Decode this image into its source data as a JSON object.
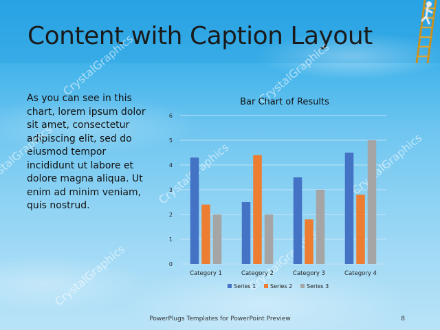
{
  "slide": {
    "title": "Content with Caption Layout",
    "body_text": "As you can see in this chart, lorem ipsum dolor sit amet, consectetur adipiscing elit, sed do eiusmod tempor incididunt ut labore et dolore magna aliqua. Ut enim ad minim veniam, quis nostrud.",
    "footer": "PowerPlugs Templates for PowerPoint Preview",
    "page_number": "8",
    "watermark": "CrystalGraphics"
  },
  "chart_data": {
    "type": "bar",
    "title": "Bar Chart of Results",
    "categories": [
      "Category 1",
      "Category 2",
      "Category 3",
      "Category 4"
    ],
    "series": [
      {
        "name": "Series 1",
        "values": [
          4.3,
          2.5,
          3.5,
          4.5
        ],
        "color": "#4472c4"
      },
      {
        "name": "Series 2",
        "values": [
          2.4,
          4.4,
          1.8,
          2.8
        ],
        "color": "#ed7d31"
      },
      {
        "name": "Series 3",
        "values": [
          2.0,
          2.0,
          3.0,
          5.0
        ],
        "color": "#a5a5a5"
      }
    ],
    "ylim": [
      0,
      6
    ],
    "yticks": [
      "0",
      "1",
      "2",
      "3",
      "4",
      "5",
      "6"
    ],
    "grid": true,
    "legend_position": "bottom"
  }
}
